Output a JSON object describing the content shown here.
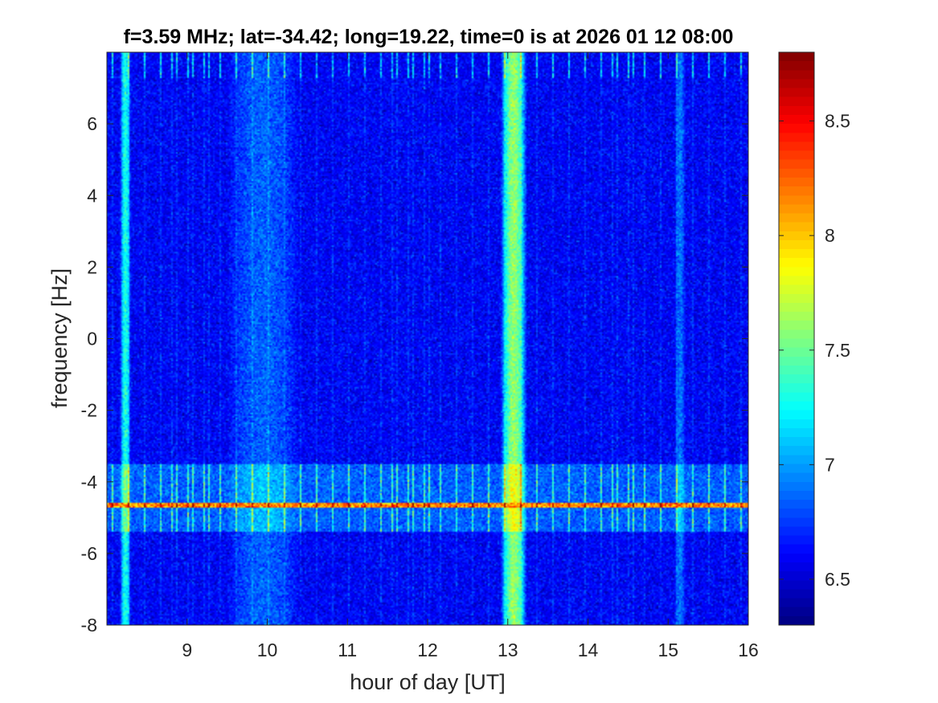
{
  "chart_data": {
    "type": "heatmap",
    "title": "f=3.59 MHz;  lat=-34.42; long=19.22, time=0 is at 2026 01 12 08:00",
    "xlabel": "hour of day [UT]",
    "ylabel": "frequency [Hz]",
    "xlim": [
      8,
      16
    ],
    "ylim": [
      -8,
      8
    ],
    "x_ticks": [
      9,
      10,
      11,
      12,
      13,
      14,
      15,
      16
    ],
    "x_tick_labels": [
      "9",
      "10",
      "11",
      "12",
      "13",
      "14",
      "15",
      "16"
    ],
    "y_ticks": [
      6,
      4,
      2,
      0,
      -2,
      -4,
      -6,
      -8
    ],
    "y_tick_labels": [
      "6",
      "4",
      "2",
      "0",
      "-2",
      "-4",
      "-6",
      "-8"
    ],
    "colorbar": {
      "colormap": "jet",
      "clim": [
        6.3,
        8.8
      ],
      "ticks": [
        8.5,
        8,
        7.5,
        7,
        6.5
      ],
      "tick_labels": [
        "8.5",
        "8",
        "7.5",
        "7",
        "6.5"
      ]
    },
    "background_level": 6.6,
    "features": [
      {
        "kind": "vertical_band",
        "x_start": 8.18,
        "x_end": 8.28,
        "level": 7.3
      },
      {
        "kind": "vertical_band",
        "x_start": 9.6,
        "x_end": 10.3,
        "level": 6.85
      },
      {
        "kind": "vertical_band",
        "x_start": 12.95,
        "x_end": 13.2,
        "level": 7.6
      },
      {
        "kind": "vertical_band",
        "x_start": 15.1,
        "x_end": 15.2,
        "level": 6.9
      },
      {
        "kind": "horizontal_band",
        "y_start": -5.4,
        "y_end": -3.5,
        "level": 7.3
      },
      {
        "kind": "horizontal_line",
        "y": -4.65,
        "level": 8.4
      },
      {
        "kind": "periodic_streaks",
        "y_start": -8,
        "y_end": 8,
        "spacing_hours": 0.067,
        "level": 7.2
      }
    ]
  }
}
